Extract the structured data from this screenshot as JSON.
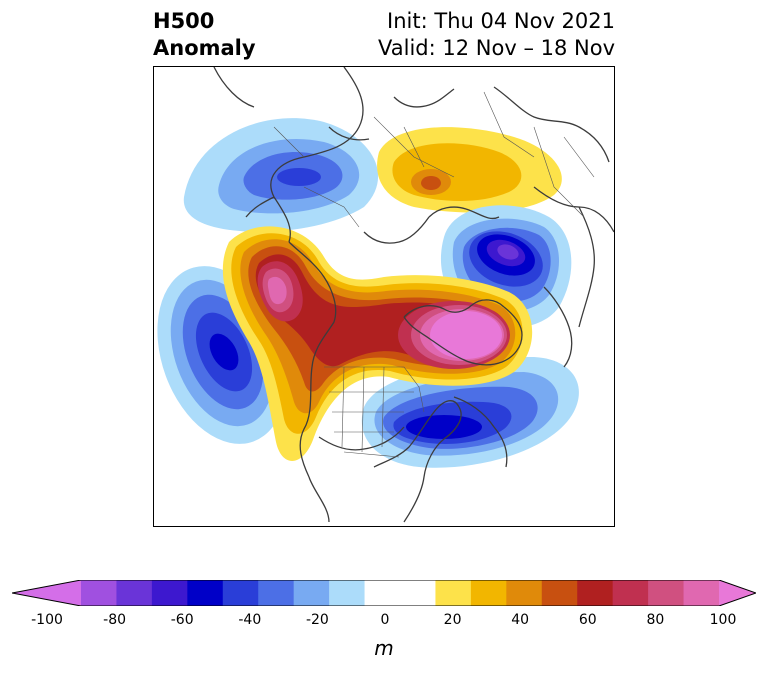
{
  "title": {
    "left_line1": "H500",
    "left_line2": "Anomaly",
    "right_line1": "Init: Thu 04 Nov 2021",
    "right_line2": "Valid: 12 Nov – 18 Nov"
  },
  "colorbar": {
    "unit": "m",
    "min": -100,
    "max": 100,
    "step": 10,
    "tick_labels": [
      "-100",
      "-80",
      "-60",
      "-40",
      "-20",
      "0",
      "20",
      "40",
      "60",
      "80",
      "100"
    ],
    "colors": [
      "#d46ee8",
      "#a050e0",
      "#6a34d8",
      "#3d18cf",
      "#0000c8",
      "#2a3ed8",
      "#4c6fe6",
      "#78aaf2",
      "#acdcfa",
      "#ffffff",
      "#ffffff",
      "#fde24a",
      "#f2b600",
      "#e08a0a",
      "#c85010",
      "#b02020",
      "#c03050",
      "#d05080",
      "#e068b0",
      "#e878d8"
    ]
  },
  "map": {
    "projection": "polar-stereographic",
    "anomalies": [
      {
        "name": "negative-north-pacific",
        "peak": -55
      },
      {
        "name": "negative-gulf-of-alaska-east-siberia",
        "peak": -45
      },
      {
        "name": "negative-northwest-atlantic",
        "peak": -70
      },
      {
        "name": "negative-north-siberia",
        "peak": -80
      },
      {
        "name": "positive-alaska",
        "peak": 80
      },
      {
        "name": "positive-greenland-arctic",
        "peak": 90
      },
      {
        "name": "positive-northern-europe",
        "peak": 40
      }
    ]
  }
}
